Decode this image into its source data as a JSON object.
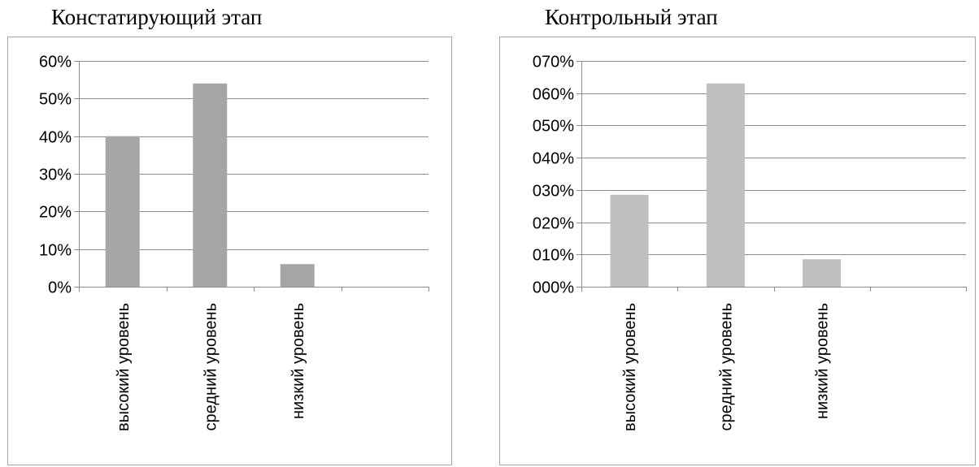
{
  "chart_data": [
    {
      "type": "bar",
      "title": "Констатирующий этап",
      "categories": [
        "высокий уровень",
        "средний уровень",
        "низкий уровень",
        ""
      ],
      "values": [
        0.4,
        0.54,
        0.06,
        null
      ],
      "ylim": [
        0,
        0.6
      ],
      "yticks": [
        "0%",
        "10%",
        "20%",
        "30%",
        "40%",
        "50%",
        "60%"
      ],
      "bar_color": "#a6a6a6",
      "grid": true,
      "legend": "none"
    },
    {
      "type": "bar",
      "title": "Контрольный этап",
      "categories": [
        "высокий уровень",
        "средний уровень",
        "низкий уровень",
        ""
      ],
      "values": [
        0.285,
        0.63,
        0.085,
        null
      ],
      "ylim": [
        0,
        0.7
      ],
      "yticks": [
        "000%",
        "010%",
        "020%",
        "030%",
        "040%",
        "050%",
        "060%",
        "070%"
      ],
      "bar_color": "#bfbfbf",
      "grid": true,
      "legend": "none"
    }
  ]
}
